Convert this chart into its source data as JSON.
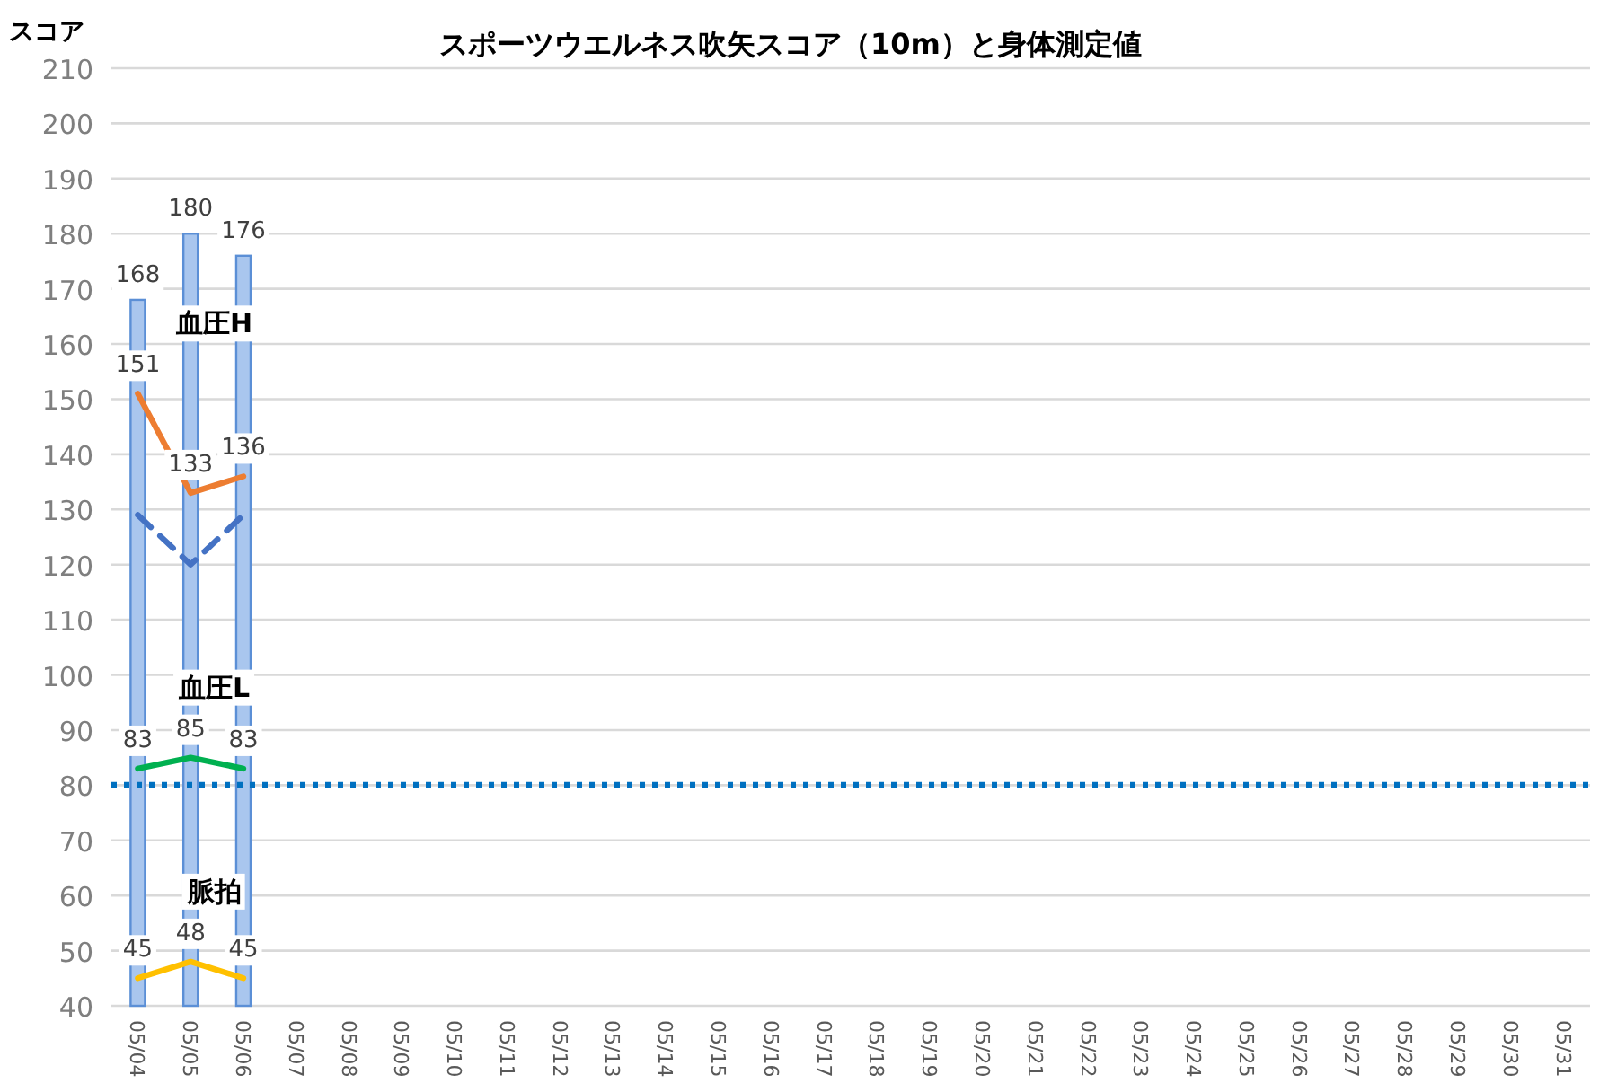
{
  "chart_data": {
    "type": "bar",
    "title": "スポーツウエルネス吹矢スコア（10m）と身体測定値",
    "ylabel": "スコア",
    "categories": [
      "05/04",
      "05/05",
      "05/06",
      "05/07",
      "05/08",
      "05/09",
      "05/10",
      "05/11",
      "05/12",
      "05/13",
      "05/14",
      "05/15",
      "05/16",
      "05/17",
      "05/18",
      "05/19",
      "05/20",
      "05/21",
      "05/22",
      "05/23",
      "05/24",
      "05/25",
      "05/26",
      "05/27",
      "05/28",
      "05/29",
      "05/30",
      "05/31"
    ],
    "series": [
      {
        "color": "#a9c6ee",
        "values": [
          168,
          180,
          176,
          null,
          null,
          null,
          null,
          null,
          null,
          null,
          null,
          null,
          null,
          null,
          null,
          null,
          null,
          null,
          null,
          null,
          null,
          null,
          null,
          null,
          null,
          null,
          null,
          null
        ],
        "value_labels": [
          "168",
          "180",
          "176",
          null,
          null,
          null,
          null,
          null,
          null,
          null,
          null,
          null,
          null,
          null,
          null,
          null,
          null,
          null,
          null,
          null,
          null,
          null,
          null,
          null,
          null,
          null,
          null,
          null
        ]
      },
      {
        "type": "line",
        "name": "血圧H",
        "color": "#ed7d31",
        "line_style": "solid",
        "values": [
          151,
          133,
          136,
          null,
          null,
          null,
          null,
          null,
          null,
          null,
          null,
          null,
          null,
          null,
          null,
          null,
          null,
          null,
          null,
          null,
          null,
          null,
          null,
          null,
          null,
          null,
          null,
          null
        ],
        "value_labels": [
          "151",
          "133",
          "136",
          null,
          null,
          null,
          null,
          null,
          null,
          null,
          null,
          null,
          null,
          null,
          null,
          null,
          null,
          null,
          null,
          null,
          null,
          null,
          null,
          null,
          null,
          null,
          null,
          null
        ]
      },
      {
        "type": "line",
        "color": "#4472c4",
        "line_style": "dashed",
        "values": [
          129,
          120,
          129,
          null,
          null,
          null,
          null,
          null,
          null,
          null,
          null,
          null,
          null,
          null,
          null,
          null,
          null,
          null,
          null,
          null,
          null,
          null,
          null,
          null,
          null,
          null,
          null,
          null
        ]
      },
      {
        "type": "line",
        "name": "血圧L",
        "color": "#00b050",
        "line_style": "solid",
        "values": [
          83,
          85,
          83,
          null,
          null,
          null,
          null,
          null,
          null,
          null,
          null,
          null,
          null,
          null,
          null,
          null,
          null,
          null,
          null,
          null,
          null,
          null,
          null,
          null,
          null,
          null,
          null,
          null
        ],
        "value_labels": [
          "83",
          "85",
          "83",
          null,
          null,
          null,
          null,
          null,
          null,
          null,
          null,
          null,
          null,
          null,
          null,
          null,
          null,
          null,
          null,
          null,
          null,
          null,
          null,
          null,
          null,
          null,
          null,
          null
        ]
      },
      {
        "type": "line",
        "name": "脈拍",
        "color": "#ffc000",
        "line_style": "solid",
        "values": [
          45,
          48,
          45,
          null,
          null,
          null,
          null,
          null,
          null,
          null,
          null,
          null,
          null,
          null,
          null,
          null,
          null,
          null,
          null,
          null,
          null,
          null,
          null,
          null,
          null,
          null,
          null,
          null
        ],
        "value_labels": [
          "45",
          "48",
          "45",
          null,
          null,
          null,
          null,
          null,
          null,
          null,
          null,
          null,
          null,
          null,
          null,
          null,
          null,
          null,
          null,
          null,
          null,
          null,
          null,
          null,
          null,
          null,
          null,
          null
        ]
      }
    ],
    "ylim": [
      40,
      210
    ],
    "yticks": [
      40,
      50,
      60,
      70,
      80,
      90,
      100,
      110,
      120,
      130,
      140,
      150,
      160,
      170,
      180,
      190,
      200,
      210
    ],
    "grid": "y",
    "ref_lines": [
      {
        "axis": "y",
        "value": 80,
        "color": "#0070c0",
        "line_style": "dotted"
      }
    ]
  }
}
